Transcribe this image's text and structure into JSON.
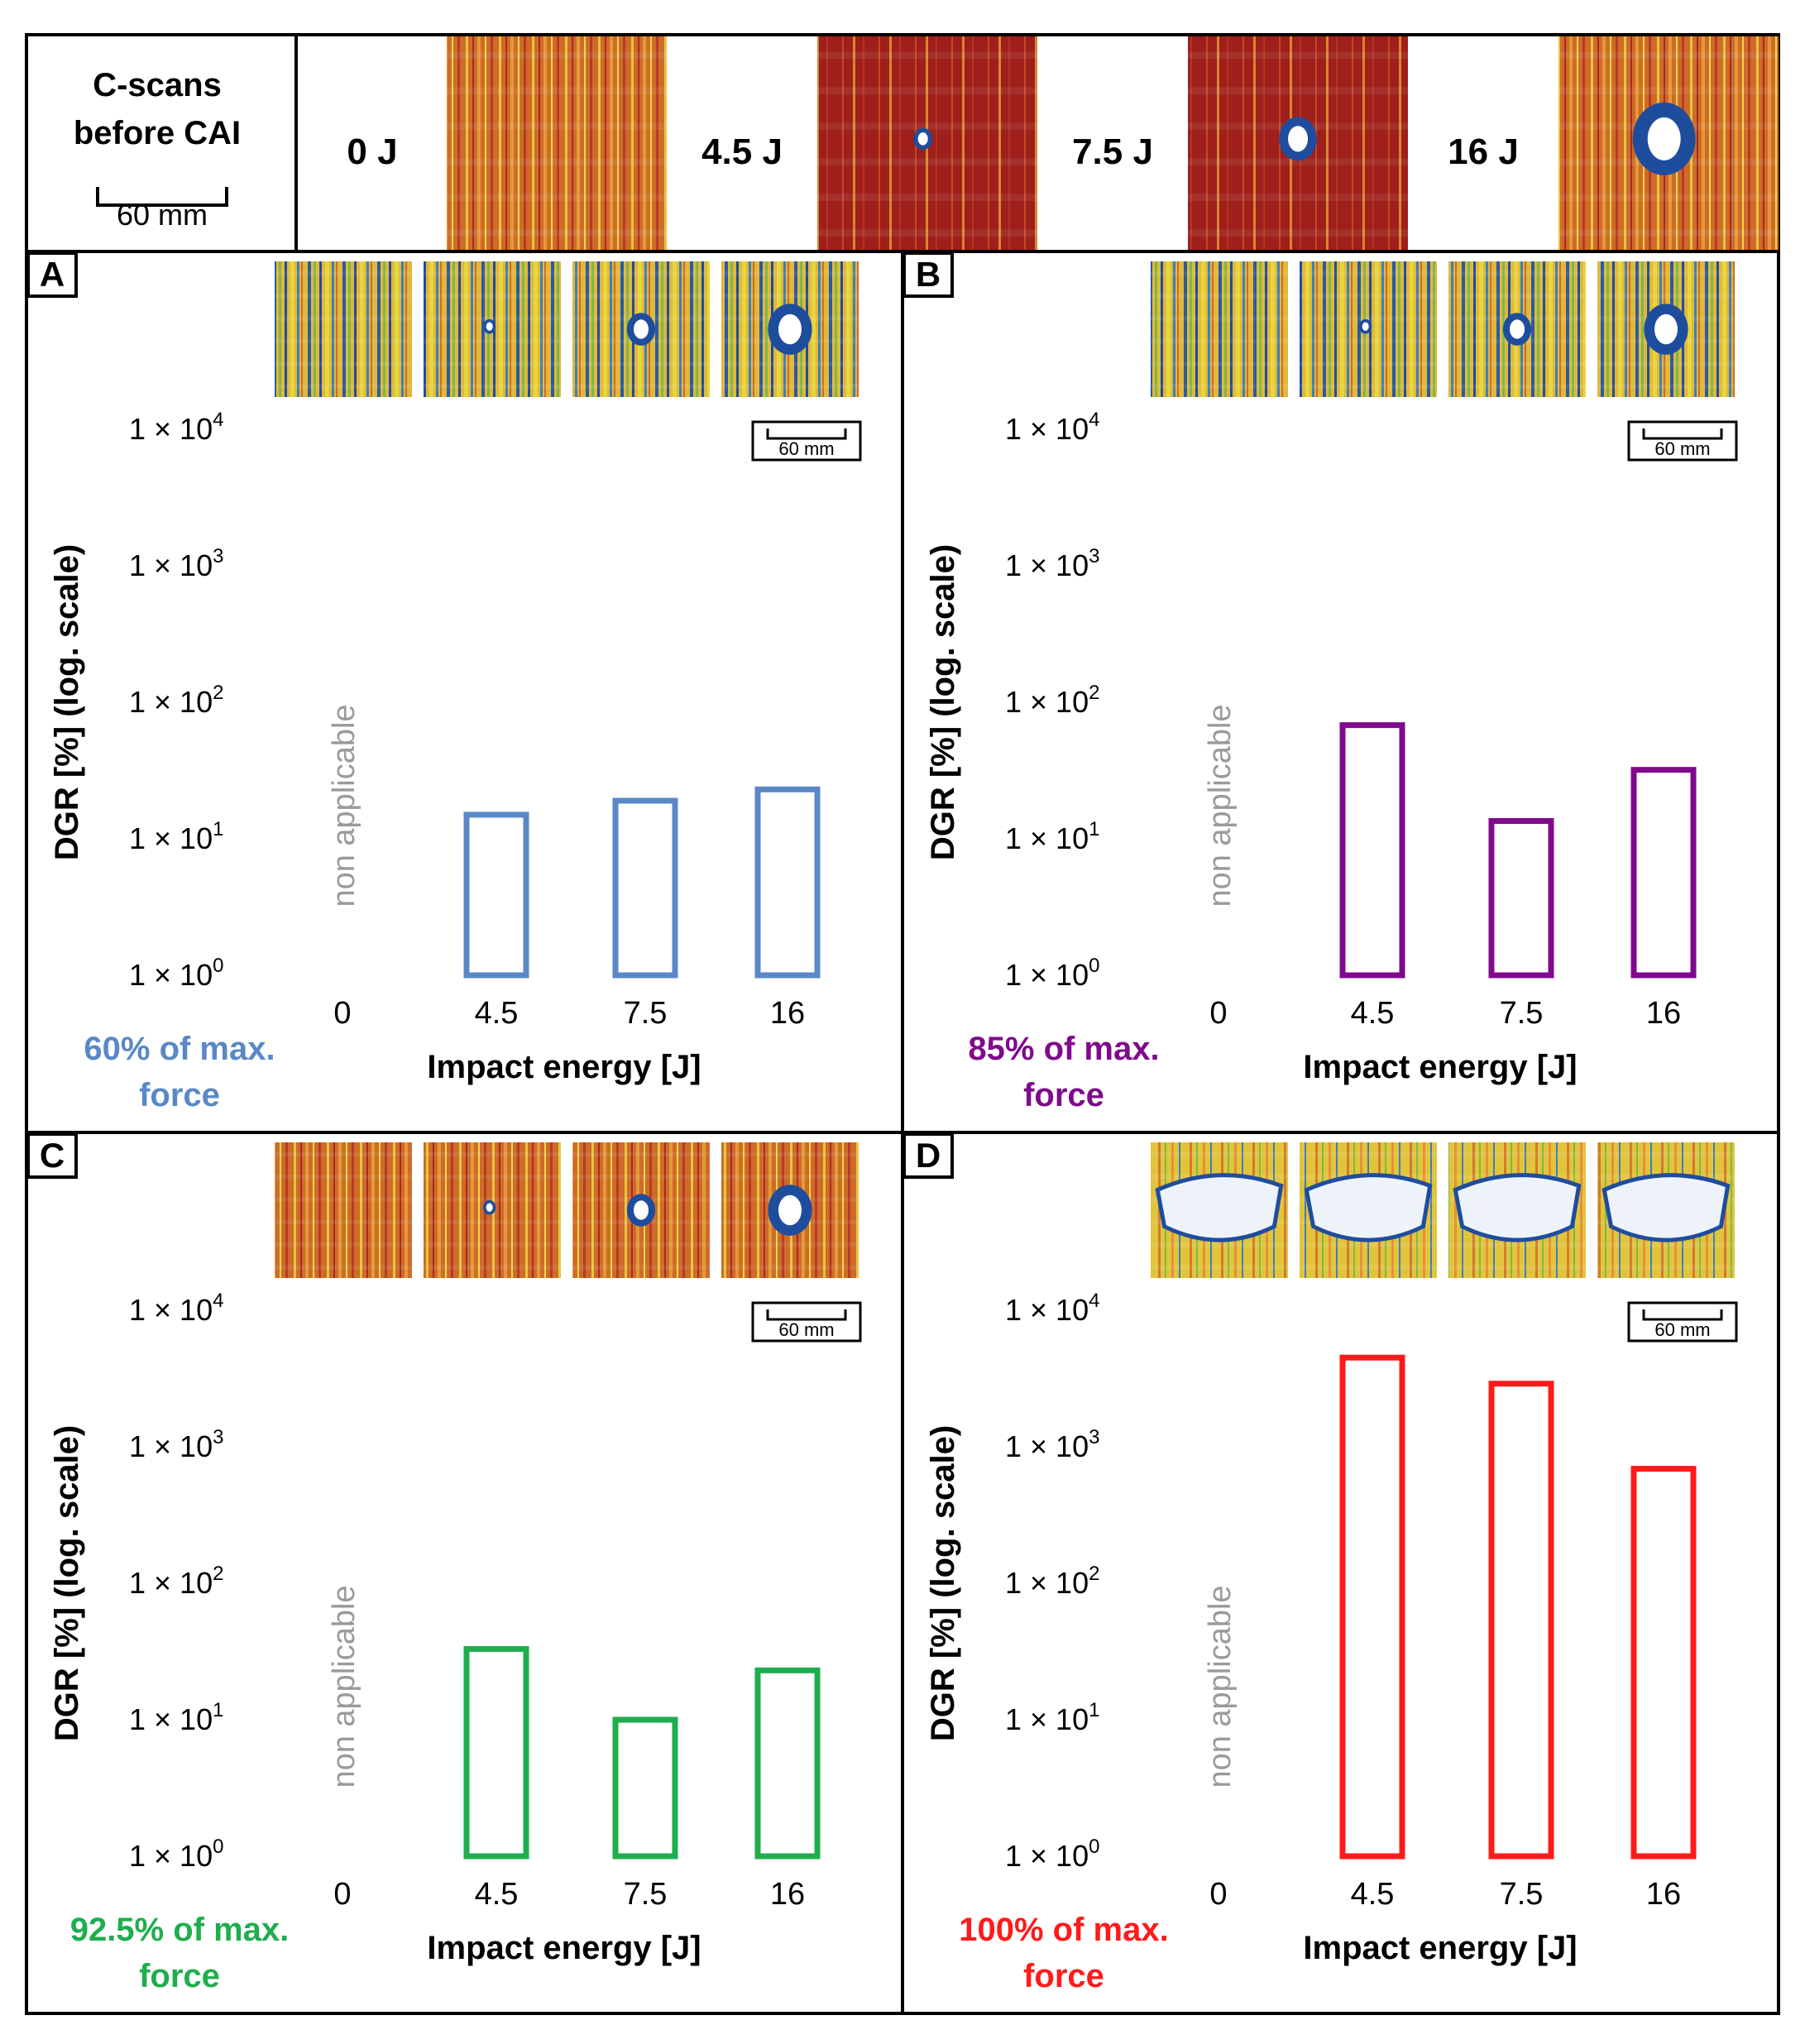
{
  "header": {
    "title_line1": "C-scans",
    "title_line2": "before CAI",
    "scale_bar_label": "60 mm",
    "energy_labels": [
      "0 J",
      "4.5 J",
      "7.5 J",
      "16 J"
    ]
  },
  "colors": {
    "panel_A": "#5a88c6",
    "panel_B": "#800a8c",
    "panel_C": "#1eae4e",
    "panel_D": "#ff1a1a",
    "non_applicable_text": "#9a9a9a",
    "cscan_red": "#a3221c",
    "cscan_orange": "#d8772e",
    "cscan_yellow": "#e7d53c",
    "cscan_green": "#7ab94a",
    "cscan_blue": "#1f4d9e"
  },
  "chart_data": [
    {
      "panel": "A",
      "type": "bar",
      "title": "60% of max. force",
      "xlabel": "Impact energy [J]",
      "ylabel": "DGR [%] (log. scale)",
      "yscale": "log",
      "ylim": [
        1,
        10000
      ],
      "y_ticks": [
        "1 × 10",
        "1 × 10",
        "1 × 10",
        "1 × 10",
        "1 × 10"
      ],
      "y_tick_exponents": [
        "0",
        "1",
        "2",
        "3",
        "4"
      ],
      "categories": [
        "0",
        "4.5",
        "7.5",
        "16"
      ],
      "values": [
        null,
        15,
        19,
        23
      ],
      "annotation": "non applicable",
      "scale_bar": "60 mm"
    },
    {
      "panel": "B",
      "type": "bar",
      "title": "85% of max. force",
      "xlabel": "Impact energy [J]",
      "ylabel": "DGR [%] (log. scale)",
      "yscale": "log",
      "ylim": [
        1,
        10000
      ],
      "y_ticks": [
        "1 × 10",
        "1 × 10",
        "1 × 10",
        "1 × 10",
        "1 × 10"
      ],
      "y_tick_exponents": [
        "0",
        "1",
        "2",
        "3",
        "4"
      ],
      "categories": [
        "0",
        "4.5",
        "7.5",
        "16"
      ],
      "values": [
        null,
        68,
        13.5,
        32
      ],
      "annotation": "non applicable",
      "scale_bar": "60 mm"
    },
    {
      "panel": "C",
      "type": "bar",
      "title": "92.5% of max. force",
      "xlabel": "Impact energy [J]",
      "ylabel": "DGR [%] (log. scale)",
      "yscale": "log",
      "ylim": [
        1,
        10000
      ],
      "y_ticks": [
        "1 × 10",
        "1 × 10",
        "1 × 10",
        "1 × 10",
        "1 × 10"
      ],
      "y_tick_exponents": [
        "0",
        "1",
        "2",
        "3",
        "4"
      ],
      "categories": [
        "0",
        "4.5",
        "7.5",
        "16"
      ],
      "values": [
        null,
        33,
        10,
        23
      ],
      "annotation": "non applicable",
      "scale_bar": "60 mm"
    },
    {
      "panel": "D",
      "type": "bar",
      "title": "100% of max. force",
      "xlabel": "Impact energy [J]",
      "ylabel": "DGR [%] (log. scale)",
      "yscale": "log",
      "ylim": [
        1,
        10000
      ],
      "y_ticks": [
        "1 × 10",
        "1 × 10",
        "1 × 10",
        "1 × 10",
        "1 × 10"
      ],
      "y_tick_exponents": [
        "0",
        "1",
        "2",
        "3",
        "4"
      ],
      "categories": [
        "0",
        "4.5",
        "7.5",
        "16"
      ],
      "values": [
        null,
        4500,
        2900,
        690
      ],
      "annotation": "non applicable",
      "scale_bar": "60 mm"
    }
  ]
}
